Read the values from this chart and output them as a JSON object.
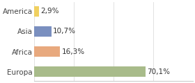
{
  "categories": [
    "America",
    "Asia",
    "Africa",
    "Europa"
  ],
  "values": [
    2.9,
    10.7,
    16.3,
    70.1
  ],
  "labels": [
    "2,9%",
    "10,7%",
    "16,3%",
    "70,1%"
  ],
  "bar_colors": [
    "#f0d060",
    "#7a8fbf",
    "#e8a97e",
    "#a8bb8a"
  ],
  "xlim": [
    0,
    100
  ],
  "background_color": "#ffffff",
  "label_fontsize": 7.5,
  "bar_height": 0.52
}
